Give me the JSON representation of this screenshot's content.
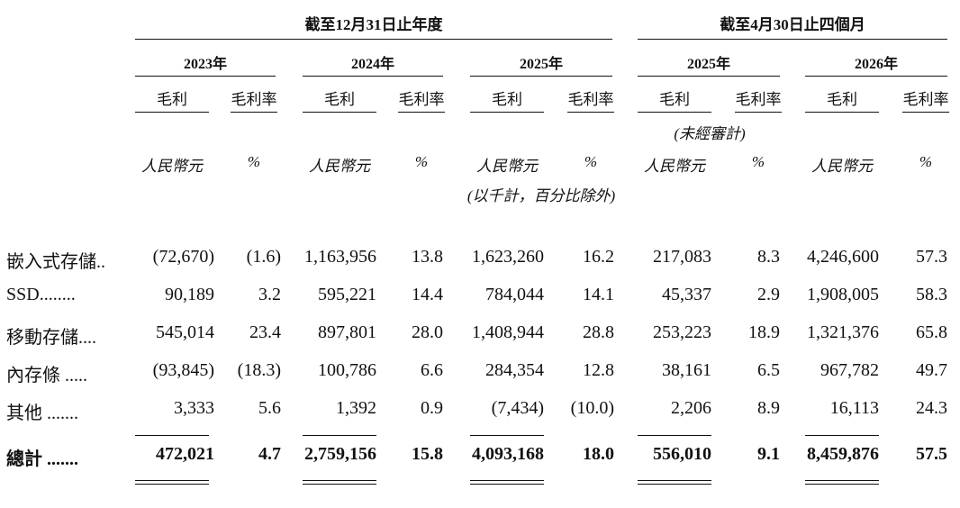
{
  "header": {
    "periods": [
      "截至12月31日止年度",
      "截至4月30日止四個月"
    ],
    "years": [
      "2023年",
      "2024年",
      "2025年",
      "2025年",
      "2026年"
    ],
    "col_labels": {
      "profit": "毛利",
      "margin": "毛利率"
    },
    "unaudited": "(未經審計)",
    "units": {
      "rmb": "人民幣元",
      "pct": "%"
    },
    "unit_note": "(以千計，百分比除外)"
  },
  "rows": [
    {
      "label": "嵌入式存儲..",
      "values": [
        "(72,670)",
        "(1.6)",
        "1,163,956",
        "13.8",
        "1,623,260",
        "16.2",
        "217,083",
        "8.3",
        "4,246,600",
        "57.3"
      ]
    },
    {
      "label": "SSD........",
      "values": [
        "90,189",
        "3.2",
        "595,221",
        "14.4",
        "784,044",
        "14.1",
        "45,337",
        "2.9",
        "1,908,005",
        "58.3"
      ]
    },
    {
      "label": "移動存儲....",
      "values": [
        "545,014",
        "23.4",
        "897,801",
        "28.0",
        "1,408,944",
        "28.8",
        "253,223",
        "18.9",
        "1,321,376",
        "65.8"
      ]
    },
    {
      "label": "內存條 .....",
      "values": [
        "(93,845)",
        "(18.3)",
        "100,786",
        "6.6",
        "284,354",
        "12.8",
        "38,161",
        "6.5",
        "967,782",
        "49.7"
      ]
    },
    {
      "label": "其他 .......",
      "values": [
        "3,333",
        "5.6",
        "1,392",
        "0.9",
        "(7,434)",
        "(10.0)",
        "2,206",
        "8.9",
        "16,113",
        "24.3"
      ]
    }
  ],
  "total": {
    "label": "總計 .......",
    "values": [
      "472,021",
      "4.7",
      "2,759,156",
      "15.8",
      "4,093,168",
      "18.0",
      "556,010",
      "9.1",
      "8,459,876",
      "57.5"
    ]
  }
}
